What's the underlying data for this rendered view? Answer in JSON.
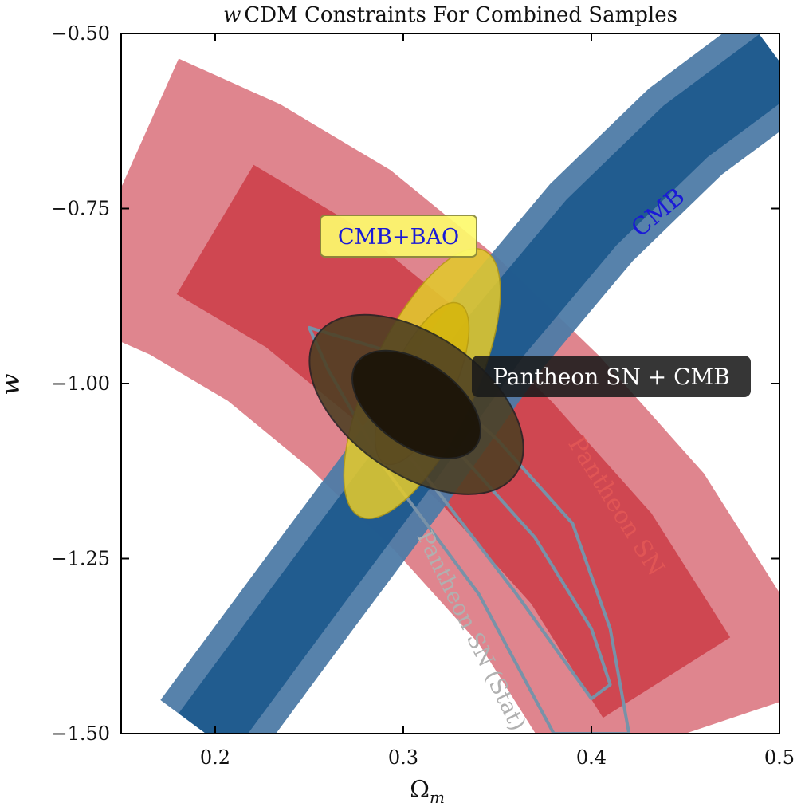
{
  "chart_data": {
    "type": "contour",
    "title_italic": "w",
    "title_rest": "CDM Constraints For Combined Samples",
    "xlabel_main": "Ω",
    "xlabel_sub": "m",
    "ylabel": "w",
    "xlim": [
      0.15,
      0.5
    ],
    "ylim": [
      -1.5,
      -0.5
    ],
    "xticks": [
      0.2,
      0.3,
      0.4,
      0.5
    ],
    "xtick_labels": [
      "0.2",
      "0.3",
      "0.4",
      "0.5"
    ],
    "yticks": [
      -1.5,
      -1.25,
      -1.0,
      -0.75,
      -0.5
    ],
    "ytick_labels": [
      "−1.50",
      "−1.25",
      "−1.00",
      "−0.75",
      "−0.50"
    ],
    "datasets": [
      {
        "name": "CMB",
        "label": "CMB",
        "color_outer": "#4e7ba6",
        "color_inner": "#1f5a8d",
        "label_color": "#1a1ad6",
        "center_path": [
          [
            0.195,
            -1.5
          ],
          [
            0.25,
            -1.3
          ],
          [
            0.3,
            -1.12
          ],
          [
            0.35,
            -0.93
          ],
          [
            0.4,
            -0.77
          ],
          [
            0.45,
            -0.64
          ],
          [
            0.5,
            -0.54
          ]
        ],
        "half_width_68": 0.018,
        "half_width_95": 0.03
      },
      {
        "name": "Pantheon SN",
        "label": "Pantheon SN",
        "color_outer": "#d9707a",
        "color_inner": "#cc3c47",
        "label_color": "#e05555",
        "center_path": [
          [
            0.15,
            -0.72
          ],
          [
            0.2,
            -0.78
          ],
          [
            0.25,
            -0.86
          ],
          [
            0.3,
            -0.97
          ],
          [
            0.35,
            -1.1
          ],
          [
            0.4,
            -1.25
          ],
          [
            0.44,
            -1.42
          ],
          [
            0.45,
            -1.5
          ]
        ],
        "half_width_68": 0.04,
        "half_width_95": 0.075
      },
      {
        "name": "Pantheon SN (Stat)",
        "label": "Pantheon SN (Stat)",
        "color_line": "#7892a8",
        "label_color": "#b0b0b0",
        "contour_68": [
          [
            0.29,
            -1.02
          ],
          [
            0.33,
            -1.1
          ],
          [
            0.37,
            -1.22
          ],
          [
            0.4,
            -1.35
          ],
          [
            0.41,
            -1.43
          ],
          [
            0.4,
            -1.45
          ],
          [
            0.36,
            -1.3
          ],
          [
            0.32,
            -1.16
          ],
          [
            0.29,
            -1.06
          ]
        ],
        "contour_95": [
          [
            0.25,
            -0.92
          ],
          [
            0.3,
            -0.96
          ],
          [
            0.35,
            -1.08
          ],
          [
            0.39,
            -1.2
          ],
          [
            0.41,
            -1.35
          ],
          [
            0.42,
            -1.5
          ],
          [
            0.38,
            -1.5
          ],
          [
            0.34,
            -1.3
          ],
          [
            0.29,
            -1.12
          ],
          [
            0.26,
            -0.98
          ]
        ]
      },
      {
        "name": "CMB+BAO",
        "label": "CMB+BAO",
        "color_outer": "#e2c92e",
        "color_inner": "#d6b60d",
        "label_bg": "#fdfa6d",
        "label_color": "#1a1ad6",
        "center": [
          0.31,
          -1.0
        ],
        "axis_angle_deg": 65,
        "semi_major_95": 0.3,
        "semi_minor_95": 0.028
      },
      {
        "name": "Pantheon SN + CMB",
        "label": "Pantheon SN + CMB",
        "color_outer": "#4d3f22",
        "color_inner": "#1b1408",
        "label_bg": "#1a1a1a",
        "label_color": "#ffffff",
        "center": [
          0.307,
          -1.03
        ],
        "semi_x_95": 0.028,
        "semi_y_95": 0.11
      }
    ]
  }
}
